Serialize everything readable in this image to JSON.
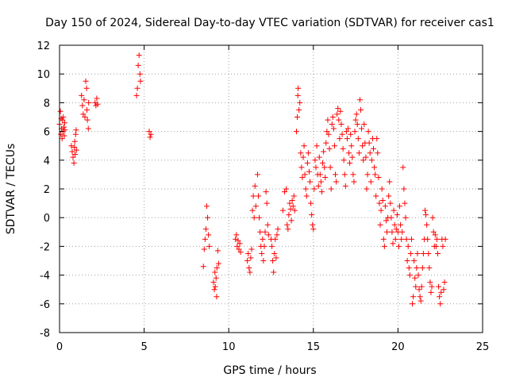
{
  "chart_data": {
    "type": "scatter",
    "title": "Day 150 of 2024, Sidereal Day-to-day VTEC variation (SDTVAR) for receiver cas1",
    "xlabel": "GPS time / hours",
    "ylabel": "SDTVAR / TECUs",
    "xlim": [
      0,
      25
    ],
    "ylim": [
      -8,
      12
    ],
    "xticks": [
      "0",
      "5",
      "10",
      "15",
      "20",
      "25"
    ],
    "yticks": [
      "-8",
      "-6",
      "-4",
      "-2",
      "0",
      "2",
      "4",
      "6",
      "8",
      "10",
      "12"
    ],
    "grid": true,
    "marker": "plus",
    "color": "#ff0000",
    "series": [
      {
        "name": "SDTVAR",
        "points": [
          [
            0.0,
            6.5
          ],
          [
            0.05,
            7.4
          ],
          [
            0.08,
            5.8
          ],
          [
            0.1,
            6.9
          ],
          [
            0.12,
            6.2
          ],
          [
            0.15,
            5.5
          ],
          [
            0.18,
            6.8
          ],
          [
            0.2,
            6.0
          ],
          [
            0.22,
            7.0
          ],
          [
            0.25,
            6.3
          ],
          [
            0.28,
            5.7
          ],
          [
            0.3,
            6.6
          ],
          [
            0.32,
            6.1
          ],
          [
            0.7,
            5.0
          ],
          [
            0.75,
            4.6
          ],
          [
            0.8,
            4.2
          ],
          [
            0.85,
            3.8
          ],
          [
            0.88,
            4.9
          ],
          [
            0.9,
            5.3
          ],
          [
            0.92,
            4.4
          ],
          [
            0.95,
            5.8
          ],
          [
            0.98,
            6.1
          ],
          [
            1.0,
            4.7
          ],
          [
            1.3,
            8.5
          ],
          [
            1.35,
            7.8
          ],
          [
            1.4,
            7.2
          ],
          [
            1.45,
            8.2
          ],
          [
            1.5,
            7.0
          ],
          [
            1.55,
            9.5
          ],
          [
            1.6,
            9.0
          ],
          [
            1.62,
            7.5
          ],
          [
            1.65,
            6.8
          ],
          [
            1.7,
            6.2
          ],
          [
            1.72,
            8.0
          ],
          [
            2.1,
            8.0
          ],
          [
            2.15,
            7.8
          ],
          [
            2.2,
            8.3
          ],
          [
            2.25,
            7.9
          ],
          [
            4.55,
            8.5
          ],
          [
            4.6,
            9.0
          ],
          [
            4.65,
            10.6
          ],
          [
            4.7,
            11.3
          ],
          [
            4.75,
            10.0
          ],
          [
            4.78,
            9.5
          ],
          [
            5.3,
            6.0
          ],
          [
            5.35,
            5.6
          ],
          [
            5.4,
            5.8
          ],
          [
            8.5,
            -3.4
          ],
          [
            8.55,
            -2.2
          ],
          [
            8.6,
            -1.5
          ],
          [
            8.65,
            -0.8
          ],
          [
            8.7,
            0.8
          ],
          [
            8.75,
            0.0
          ],
          [
            8.8,
            -1.2
          ],
          [
            8.85,
            -2.0
          ],
          [
            9.1,
            -4.5
          ],
          [
            9.15,
            -5.0
          ],
          [
            9.18,
            -3.8
          ],
          [
            9.2,
            -4.8
          ],
          [
            9.25,
            -4.2
          ],
          [
            9.28,
            -5.5
          ],
          [
            9.3,
            -3.5
          ],
          [
            9.35,
            -2.3
          ],
          [
            9.4,
            -3.2
          ],
          [
            10.4,
            -1.5
          ],
          [
            10.45,
            -1.2
          ],
          [
            10.5,
            -2.0
          ],
          [
            10.55,
            -1.6
          ],
          [
            10.6,
            -2.2
          ],
          [
            10.65,
            -1.8
          ],
          [
            10.7,
            -2.4
          ],
          [
            11.1,
            -3.0
          ],
          [
            11.15,
            -2.5
          ],
          [
            11.2,
            -3.5
          ],
          [
            11.25,
            -3.8
          ],
          [
            11.3,
            -2.8
          ],
          [
            11.35,
            -2.2
          ],
          [
            11.4,
            0.5
          ],
          [
            11.45,
            1.5
          ],
          [
            11.5,
            0.0
          ],
          [
            11.55,
            2.2
          ],
          [
            11.6,
            0.8
          ],
          [
            11.7,
            3.0
          ],
          [
            11.75,
            1.5
          ],
          [
            11.8,
            0.0
          ],
          [
            11.85,
            -1.0
          ],
          [
            11.9,
            -2.0
          ],
          [
            11.95,
            -2.5
          ],
          [
            12.0,
            -1.5
          ],
          [
            12.05,
            -3.0
          ],
          [
            12.1,
            -2.0
          ],
          [
            12.15,
            -1.0
          ],
          [
            12.2,
            1.8
          ],
          [
            12.25,
            1.0
          ],
          [
            12.3,
            -0.5
          ],
          [
            12.35,
            -1.2
          ],
          [
            12.5,
            -1.5
          ],
          [
            12.55,
            -2.0
          ],
          [
            12.6,
            -3.0
          ],
          [
            12.65,
            -3.8
          ],
          [
            12.7,
            -2.5
          ],
          [
            12.75,
            -1.5
          ],
          [
            12.8,
            -2.8
          ],
          [
            12.85,
            -1.2
          ],
          [
            12.9,
            -0.8
          ],
          [
            13.2,
            0.5
          ],
          [
            13.3,
            1.8
          ],
          [
            13.4,
            2.0
          ],
          [
            13.45,
            -0.5
          ],
          [
            13.5,
            -0.8
          ],
          [
            13.55,
            0.2
          ],
          [
            13.6,
            1.0
          ],
          [
            13.65,
            0.6
          ],
          [
            13.7,
            -0.2
          ],
          [
            13.75,
            1.2
          ],
          [
            13.8,
            0.8
          ],
          [
            13.85,
            1.5
          ],
          [
            13.9,
            0.5
          ],
          [
            14.0,
            6.0
          ],
          [
            14.05,
            7.0
          ],
          [
            14.08,
            8.5
          ],
          [
            14.1,
            9.0
          ],
          [
            14.15,
            7.5
          ],
          [
            14.2,
            8.0
          ],
          [
            14.25,
            4.5
          ],
          [
            14.3,
            3.5
          ],
          [
            14.35,
            2.8
          ],
          [
            14.4,
            4.2
          ],
          [
            14.45,
            5.0
          ],
          [
            14.5,
            3.0
          ],
          [
            14.55,
            2.0
          ],
          [
            14.6,
            1.5
          ],
          [
            14.65,
            3.8
          ],
          [
            14.7,
            4.5
          ],
          [
            14.75,
            3.2
          ],
          [
            14.8,
            2.5
          ],
          [
            14.85,
            1.0
          ],
          [
            14.9,
            0.2
          ],
          [
            14.95,
            -0.5
          ],
          [
            15.0,
            -0.8
          ],
          [
            15.05,
            2.0
          ],
          [
            15.1,
            4.0
          ],
          [
            15.15,
            3.5
          ],
          [
            15.2,
            5.0
          ],
          [
            15.25,
            3.0
          ],
          [
            15.3,
            2.2
          ],
          [
            15.35,
            4.2
          ],
          [
            15.4,
            3.0
          ],
          [
            15.45,
            2.5
          ],
          [
            15.5,
            1.8
          ],
          [
            15.55,
            3.8
          ],
          [
            15.6,
            4.6
          ],
          [
            15.65,
            3.5
          ],
          [
            15.7,
            2.8
          ],
          [
            15.75,
            5.2
          ],
          [
            15.8,
            6.0
          ],
          [
            15.85,
            6.8
          ],
          [
            15.9,
            5.8
          ],
          [
            15.95,
            4.8
          ],
          [
            16.0,
            3.5
          ],
          [
            16.05,
            2.0
          ],
          [
            16.1,
            6.5
          ],
          [
            16.15,
            7.0
          ],
          [
            16.2,
            6.2
          ],
          [
            16.25,
            5.0
          ],
          [
            16.3,
            3.0
          ],
          [
            16.35,
            2.5
          ],
          [
            16.4,
            7.2
          ],
          [
            16.45,
            7.6
          ],
          [
            16.5,
            6.8
          ],
          [
            16.55,
            5.5
          ],
          [
            16.6,
            7.4
          ],
          [
            16.65,
            6.5
          ],
          [
            16.7,
            5.8
          ],
          [
            16.75,
            4.8
          ],
          [
            16.8,
            4.0
          ],
          [
            16.85,
            3.0
          ],
          [
            16.9,
            2.2
          ],
          [
            16.95,
            6.0
          ],
          [
            17.0,
            5.5
          ],
          [
            17.05,
            6.2
          ],
          [
            17.1,
            4.5
          ],
          [
            17.15,
            3.8
          ],
          [
            17.2,
            5.8
          ],
          [
            17.25,
            5.0
          ],
          [
            17.3,
            4.2
          ],
          [
            17.35,
            3.0
          ],
          [
            17.4,
            2.5
          ],
          [
            17.45,
            6.0
          ],
          [
            17.5,
            6.8
          ],
          [
            17.55,
            7.2
          ],
          [
            17.6,
            6.5
          ],
          [
            17.65,
            5.5
          ],
          [
            17.7,
            4.5
          ],
          [
            17.75,
            8.2
          ],
          [
            17.8,
            7.5
          ],
          [
            17.85,
            6.2
          ],
          [
            17.9,
            5.0
          ],
          [
            17.95,
            4.0
          ],
          [
            18.0,
            6.5
          ],
          [
            18.05,
            5.2
          ],
          [
            18.1,
            4.2
          ],
          [
            18.15,
            2.0
          ],
          [
            18.2,
            3.0
          ],
          [
            18.25,
            6.0
          ],
          [
            18.3,
            5.2
          ],
          [
            18.35,
            4.5
          ],
          [
            18.4,
            2.5
          ],
          [
            18.45,
            4.0
          ],
          [
            18.5,
            5.5
          ],
          [
            18.55,
            4.8
          ],
          [
            18.6,
            3.5
          ],
          [
            18.65,
            3.0
          ],
          [
            18.7,
            1.5
          ],
          [
            18.75,
            5.5
          ],
          [
            18.8,
            4.5
          ],
          [
            18.85,
            2.8
          ],
          [
            18.9,
            1.0
          ],
          [
            18.95,
            -0.5
          ],
          [
            19.0,
            0.5
          ],
          [
            19.05,
            2.0
          ],
          [
            19.1,
            1.2
          ],
          [
            19.15,
            -1.5
          ],
          [
            19.2,
            -2.0
          ],
          [
            19.25,
            0.8
          ],
          [
            19.3,
            -0.2
          ],
          [
            19.35,
            -1.0
          ],
          [
            19.4,
            0.0
          ],
          [
            19.45,
            1.5
          ],
          [
            19.5,
            2.5
          ],
          [
            19.55,
            1.0
          ],
          [
            19.6,
            0.0
          ],
          [
            19.65,
            -1.0
          ],
          [
            19.7,
            -1.8
          ],
          [
            19.75,
            0.5
          ],
          [
            19.8,
            -0.5
          ],
          [
            19.85,
            -1.5
          ],
          [
            19.9,
            -0.8
          ],
          [
            19.95,
            0.2
          ],
          [
            20.0,
            -1.0
          ],
          [
            20.05,
            -2.0
          ],
          [
            20.1,
            0.8
          ],
          [
            20.15,
            -0.5
          ],
          [
            20.2,
            -1.5
          ],
          [
            20.25,
            -1.0
          ],
          [
            20.3,
            3.5
          ],
          [
            20.35,
            2.0
          ],
          [
            20.4,
            1.0
          ],
          [
            20.45,
            0.0
          ],
          [
            20.5,
            -1.5
          ],
          [
            20.55,
            -3.0
          ],
          [
            20.6,
            -2.0
          ],
          [
            20.65,
            -3.5
          ],
          [
            20.7,
            -4.0
          ],
          [
            20.75,
            -2.5
          ],
          [
            20.8,
            -1.5
          ],
          [
            20.85,
            -6.0
          ],
          [
            20.9,
            -5.5
          ],
          [
            20.95,
            -3.0
          ],
          [
            21.0,
            -4.2
          ],
          [
            21.05,
            -4.8
          ],
          [
            21.1,
            -3.5
          ],
          [
            21.15,
            -2.5
          ],
          [
            21.2,
            -4.0
          ],
          [
            21.25,
            -5.0
          ],
          [
            21.3,
            -5.5
          ],
          [
            21.35,
            -5.8
          ],
          [
            21.4,
            -4.8
          ],
          [
            21.45,
            -3.5
          ],
          [
            21.5,
            -2.5
          ],
          [
            21.55,
            -1.5
          ],
          [
            21.6,
            0.5
          ],
          [
            21.65,
            0.2
          ],
          [
            21.7,
            -0.5
          ],
          [
            21.75,
            -1.5
          ],
          [
            21.8,
            -2.5
          ],
          [
            21.85,
            -3.5
          ],
          [
            21.9,
            -4.5
          ],
          [
            21.95,
            -5.2
          ],
          [
            22.0,
            -4.8
          ],
          [
            22.05,
            0.0
          ],
          [
            22.1,
            -1.0
          ],
          [
            22.15,
            -2.0
          ],
          [
            22.2,
            -1.2
          ],
          [
            22.25,
            -2.0
          ],
          [
            22.3,
            -1.5
          ],
          [
            22.35,
            -2.5
          ],
          [
            22.4,
            -4.8
          ],
          [
            22.45,
            -5.5
          ],
          [
            22.5,
            -6.0
          ],
          [
            22.55,
            -5.2
          ],
          [
            22.6,
            -1.5
          ],
          [
            22.65,
            -2.0
          ],
          [
            22.7,
            -5.0
          ],
          [
            22.75,
            -4.5
          ],
          [
            22.8,
            -1.5
          ]
        ]
      }
    ]
  }
}
